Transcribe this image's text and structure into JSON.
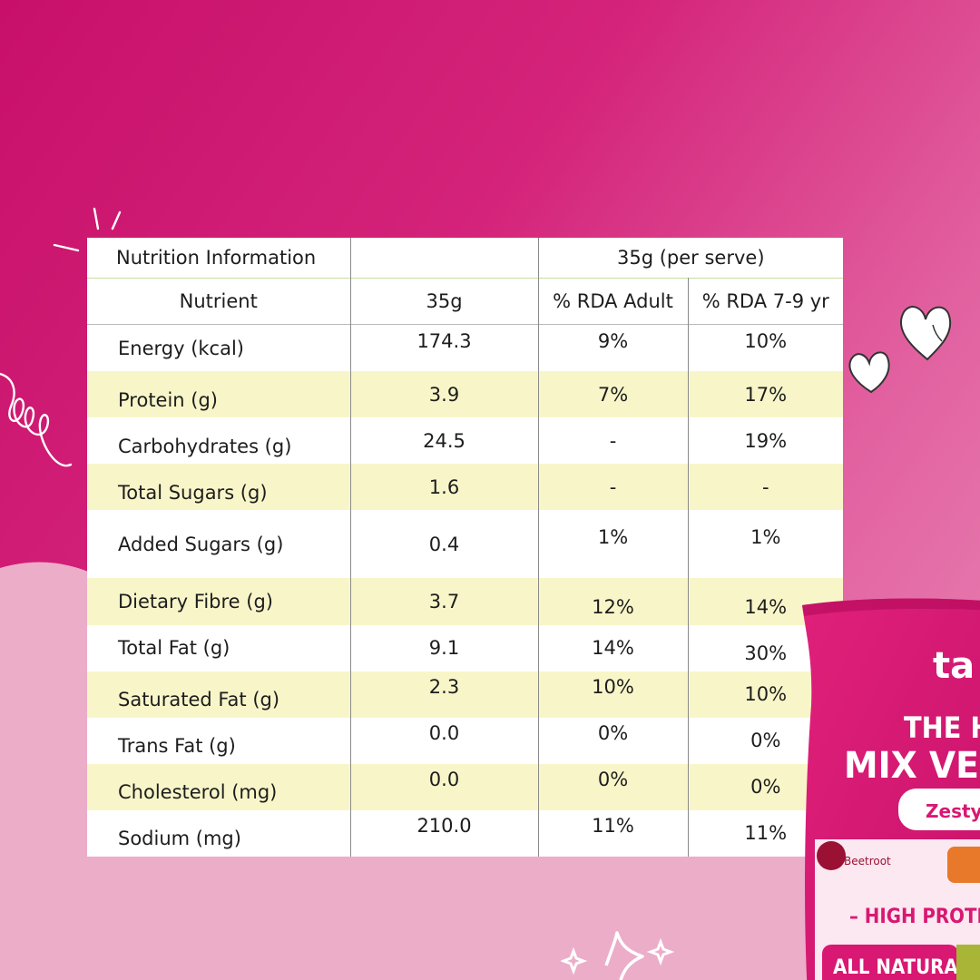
{
  "table": {
    "title": "Nutrition Information",
    "serving_header": "35g (per serve)",
    "col_headers": [
      "Nutrient",
      "35g",
      "% RDA Adult",
      "% RDA 7-9 yr"
    ],
    "rows": [
      {
        "nutrient": "Energy (kcal)",
        "amount": "174.3",
        "rda_adult": "9%",
        "rda_kids": "10%"
      },
      {
        "nutrient": "Protein (g)",
        "amount": "3.9",
        "rda_adult": "7%",
        "rda_kids": "17%"
      },
      {
        "nutrient": "Carbohydrates (g)",
        "amount": "24.5",
        "rda_adult": "-",
        "rda_kids": "19%"
      },
      {
        "nutrient": "Total Sugars (g)",
        "amount": "1.6",
        "rda_adult": "-",
        "rda_kids": "-"
      },
      {
        "nutrient": "Added Sugars (g)",
        "amount": "0.4",
        "rda_adult": "1%",
        "rda_kids": "1%"
      },
      {
        "nutrient": "Dietary Fibre (g)",
        "amount": "3.7",
        "rda_adult": "12%",
        "rda_kids": "14%"
      },
      {
        "nutrient": "Total Fat (g)",
        "amount": "9.1",
        "rda_adult": "14%",
        "rda_kids": "30%"
      },
      {
        "nutrient": "Saturated Fat (g)",
        "amount": "2.3",
        "rda_adult": "10%",
        "rda_kids": "10%"
      },
      {
        "nutrient": "Trans Fat (g)",
        "amount": "0.0",
        "rda_adult": "0%",
        "rda_kids": "0%"
      },
      {
        "nutrient": "Cholesterol (mg)",
        "amount": "0.0",
        "rda_adult": "0%",
        "rda_kids": "0%"
      },
      {
        "nutrient": "Sodium (mg)",
        "amount": "210.0",
        "rda_adult": "11%",
        "rda_kids": "11%"
      }
    ]
  },
  "package": {
    "brand": "ta",
    "line1": "THE H",
    "line2": "MIX VEG",
    "flavor": "Zesty",
    "ingredient": "Beetroot",
    "tagline": "– HIGH PROTE",
    "badge": "ALL NATURAL"
  },
  "colors": {
    "background_magenta": "#c8106a",
    "background_light_pink": "#eaaac8",
    "row_highlight": "#f8f6c9",
    "pack_pink": "#d81872"
  },
  "icons": [
    "sparkle-icon",
    "heart-icon",
    "swirl-doodle",
    "star-sparkle-icon"
  ]
}
